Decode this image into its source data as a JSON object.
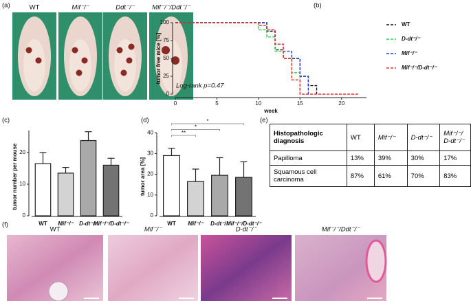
{
  "panels": [
    "(a)",
    "(b)",
    "(c)",
    "(d)",
    "(e)",
    "(f)"
  ],
  "photos": {
    "labels": [
      "WT",
      "Mif⁻/⁻",
      "Ddt⁻/⁻",
      "Mif⁻/⁻/Ddt⁻/⁻"
    ]
  },
  "chart_data": [
    {
      "type": "step",
      "xlabel": "week",
      "ylabel": "tumor free mice [%]",
      "xlim": [
        0,
        23
      ],
      "ylim": [
        0,
        100
      ],
      "xticks": [
        0,
        5,
        10,
        15,
        20
      ],
      "yticks": [
        0,
        25,
        50,
        75,
        100
      ],
      "annotation": "Log-rank p=0.47",
      "legend": "right",
      "series": [
        {
          "name": "WT",
          "color": "#111111",
          "x": [
            0,
            11,
            12,
            13,
            15,
            16,
            17
          ],
          "values": [
            100,
            88,
            62,
            50,
            25,
            12,
            0
          ]
        },
        {
          "name": "D-dt⁻/⁻",
          "color": "#2ecc40",
          "x": [
            0,
            10,
            11,
            12,
            13,
            14,
            15
          ],
          "values": [
            100,
            90,
            80,
            60,
            50,
            30,
            0
          ]
        },
        {
          "name": "Mif⁻/⁻",
          "color": "#1f3fd6",
          "x": [
            0,
            11,
            12,
            13,
            14,
            15,
            16
          ],
          "values": [
            100,
            90,
            70,
            60,
            50,
            25,
            0
          ]
        },
        {
          "name": "Mif⁻/⁻/D-dt⁻/⁻",
          "color": "#e8302a",
          "x": [
            0,
            10,
            11,
            12,
            13,
            14,
            15,
            22
          ],
          "values": [
            100,
            96,
            90,
            70,
            50,
            20,
            0,
            0
          ]
        }
      ]
    },
    {
      "type": "bar",
      "ylabel": "tumor number per mouse",
      "categories": [
        "WT",
        "Mif⁻/⁻",
        "D-dt⁻/⁻",
        "Mif⁻/⁻/D-dt⁻/⁻"
      ],
      "values": [
        16.5,
        13.5,
        23.8,
        16
      ],
      "errors": [
        3.5,
        1.8,
        2.8,
        2.2
      ],
      "colors": [
        "#ffffff",
        "#d3d3d3",
        "#a9a9a9",
        "#737373"
      ],
      "ylim": [
        0,
        27
      ],
      "yticks": [
        0,
        10,
        20
      ]
    },
    {
      "type": "bar",
      "ylabel": "tumor area [%]",
      "categories": [
        "WT",
        "Mif⁻/⁻",
        "D-dt⁻/⁻",
        "Mif⁻/⁻/D-dt⁻/⁻"
      ],
      "values": [
        29,
        16.5,
        19.5,
        18.5
      ],
      "errors": [
        3.5,
        6,
        8.5,
        7.5
      ],
      "colors": [
        "#ffffff",
        "#d3d3d3",
        "#a9a9a9",
        "#737373"
      ],
      "ylim": [
        0,
        40
      ],
      "yticks": [
        0,
        10,
        20,
        30,
        40
      ],
      "significance": [
        {
          "label": "**",
          "categories": [
            0,
            1
          ]
        },
        {
          "label": "*",
          "categories": [
            0,
            2
          ]
        },
        {
          "label": "*",
          "categories": [
            0,
            3
          ]
        }
      ]
    }
  ],
  "table": {
    "header": [
      "Histopathologic diagnosis",
      "WT",
      "Mif⁻/⁻",
      "D-dt⁻/⁻",
      "Mif⁻/⁻/ D-dt⁻/⁻"
    ],
    "rows": [
      [
        "Papilloma",
        "13%",
        "39%",
        "30%",
        "17%"
      ],
      [
        "Squamous cell carcinoma",
        "87%",
        "61%",
        "70%",
        "83%"
      ]
    ]
  },
  "histology": {
    "labels": [
      "WT",
      "Mif⁻/⁻",
      "D-dt⁻/⁻",
      "Mif⁻/⁻/Ddt⁻/⁻"
    ]
  }
}
